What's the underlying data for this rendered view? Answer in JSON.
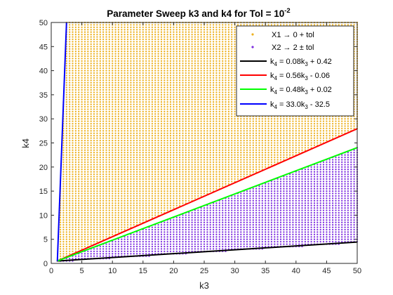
{
  "chart_data": {
    "type": "scatter",
    "title": "Parameter Sweep k3 and k4 for Tol = 10",
    "title_superscript": "-2",
    "xlabel": "k3",
    "ylabel": "k4",
    "xlim": [
      0,
      50
    ],
    "ylim": [
      0,
      50
    ],
    "xticks": [
      0,
      5,
      10,
      15,
      20,
      25,
      30,
      35,
      40,
      45,
      50
    ],
    "yticks": [
      0,
      5,
      10,
      15,
      20,
      25,
      30,
      35,
      40,
      45,
      50
    ],
    "grid": false,
    "legend_position": "top-right",
    "series": [
      {
        "name": "X1 → 0 + tol",
        "kind": "points",
        "color": "#EDB120",
        "region_description": "dense grid of points above the line k4 = 0.56k3 - 0.06 and left of k4 = 33.0k3 - 32.5",
        "grid_step": 0.5,
        "xrange": [
          1,
          50
        ],
        "yrange": [
          0.5,
          50
        ]
      },
      {
        "name": "X2 → 2 ± tol",
        "kind": "points",
        "color": "#7E2FDF",
        "region_description": "dense grid of points between k4 = 0.08k3 + 0.42 and k4 = 0.48k3 + 0.02",
        "grid_step": 0.5,
        "xrange": [
          1,
          50
        ],
        "yrange": [
          0.5,
          24
        ]
      },
      {
        "name": "k4 = 0.08k3 + 0.42",
        "label_parts": [
          "k",
          "4",
          " = 0.08k",
          "3",
          " + 0.42"
        ],
        "kind": "line",
        "color": "#000000",
        "slope": 0.08,
        "intercept": 0.42,
        "x": [
          1,
          50
        ]
      },
      {
        "name": "k4 = 0.56k3 - 0.06",
        "label_parts": [
          "k",
          "4",
          " = 0.56k",
          "3",
          " - 0.06"
        ],
        "kind": "line",
        "color": "#FF0000",
        "slope": 0.56,
        "intercept": -0.06,
        "x": [
          1,
          50
        ]
      },
      {
        "name": "k4 = 0.48k3 + 0.02",
        "label_parts": [
          "k",
          "4",
          " = 0.48k",
          "3",
          " + 0.02"
        ],
        "kind": "line",
        "color": "#00FF00",
        "slope": 0.48,
        "intercept": 0.02,
        "x": [
          1,
          50
        ]
      },
      {
        "name": "k4 = 33.0k3 - 32.5",
        "label_parts": [
          "k",
          "4",
          " = 33.0k",
          "3",
          " - 32.5"
        ],
        "kind": "line",
        "color": "#0000FF",
        "slope": 33.0,
        "intercept": -32.5,
        "x": [
          1,
          2.5
        ]
      }
    ]
  }
}
